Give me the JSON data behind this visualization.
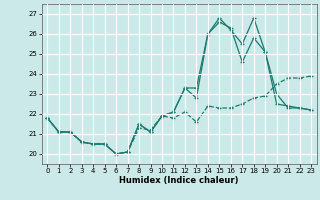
{
  "xlabel": "Humidex (Indice chaleur)",
  "background_color": "#cce9e9",
  "grid_color": "#ffffff",
  "line_color": "#1a7a6e",
  "xlim": [
    -0.5,
    23.5
  ],
  "ylim": [
    19.5,
    27.5
  ],
  "yticks": [
    20,
    21,
    22,
    23,
    24,
    25,
    26,
    27
  ],
  "xticks": [
    0,
    1,
    2,
    3,
    4,
    5,
    6,
    7,
    8,
    9,
    10,
    11,
    12,
    13,
    14,
    15,
    16,
    17,
    18,
    19,
    20,
    21,
    22,
    23
  ],
  "line1_x": [
    0,
    1,
    2,
    3,
    4,
    5,
    6,
    7,
    8,
    9,
    10,
    11,
    12,
    13,
    14,
    15,
    16,
    17,
    18,
    19,
    20,
    21,
    22,
    23
  ],
  "line1_y": [
    21.8,
    21.1,
    21.1,
    20.6,
    20.5,
    20.5,
    20.0,
    20.1,
    21.3,
    21.2,
    21.9,
    21.8,
    22.1,
    21.6,
    22.4,
    22.3,
    22.3,
    22.5,
    22.8,
    22.9,
    23.5,
    23.8,
    23.8,
    23.9
  ],
  "line2_x": [
    0,
    1,
    2,
    3,
    4,
    5,
    6,
    7,
    8,
    9,
    10,
    11,
    12,
    13,
    14,
    15,
    16,
    17,
    18,
    19,
    20,
    21,
    22,
    23
  ],
  "line2_y": [
    21.8,
    21.1,
    21.1,
    20.6,
    20.5,
    20.5,
    20.0,
    20.1,
    21.5,
    21.1,
    21.9,
    22.1,
    23.3,
    22.8,
    26.0,
    26.6,
    26.3,
    24.6,
    25.8,
    25.1,
    22.5,
    22.4,
    22.3,
    22.2
  ],
  "line3_x": [
    0,
    1,
    2,
    3,
    4,
    5,
    6,
    7,
    8,
    9,
    10,
    11,
    12,
    13,
    14,
    15,
    16,
    17,
    18,
    19,
    20,
    21,
    22,
    23
  ],
  "line3_y": [
    21.8,
    21.1,
    21.1,
    20.6,
    20.5,
    20.5,
    20.0,
    20.1,
    21.5,
    21.1,
    21.9,
    22.1,
    23.3,
    23.3,
    26.0,
    26.8,
    26.2,
    25.5,
    26.8,
    25.1,
    23.0,
    22.3,
    22.3,
    22.2
  ],
  "line1_style": "--",
  "line2_style": "-",
  "line3_style": "-"
}
